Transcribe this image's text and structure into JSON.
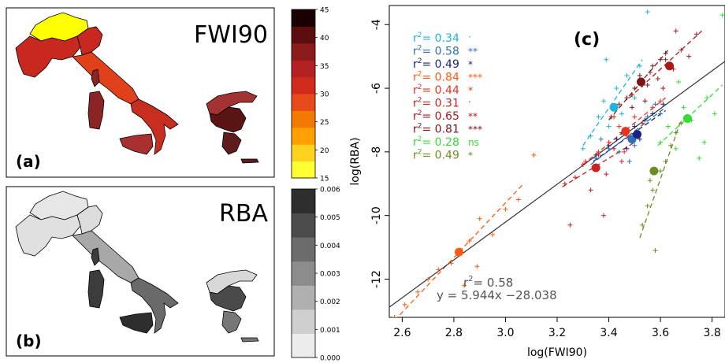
{
  "panel_a": {
    "map_title": "FWI90",
    "panel_label": "(a)",
    "colorbar_ticks": [
      "15",
      "20",
      "25",
      "30",
      "35",
      "40",
      "45"
    ],
    "colorbar_colors": [
      "#ffff33",
      "#ffd21f",
      "#ff9f00",
      "#f27a00",
      "#e64a19",
      "#d02a1a",
      "#b22222",
      "#8b1a1a",
      "#5a0e0e",
      "#1a0000"
    ],
    "region_colors": {
      "north_alps": "#ffff00",
      "north_italy": "#c8281f",
      "north_east": "#c8281f",
      "central_italy": "#e0401a",
      "south_italy": "#c82d1f",
      "sardinia": "#8b2525",
      "sicily": "#a93030",
      "greece_north": "#a33333",
      "greece_mid": "#5a1414",
      "greece_south": "#5e1c1c"
    }
  },
  "panel_b": {
    "map_title": "RBA",
    "panel_label": "(b)",
    "colorbar_ticks": [
      "0.000",
      "0.001",
      "0.002",
      "0.003",
      "0.004",
      "0.005",
      "0.006"
    ],
    "colorbar_colors": [
      "#ececec",
      "#cfcfcf",
      "#b0b0b0",
      "#8c8c8c",
      "#6c6c6c",
      "#4c4c4c",
      "#2e2e2e"
    ],
    "region_colors": {
      "north_alps": "#e6e6e6",
      "north_italy": "#e0e0e0",
      "north_east": "#dcdcdc",
      "central_italy": "#a8a8a8",
      "south_italy": "#6a6a6a",
      "sardinia": "#3c3c3c",
      "sicily": "#2e2e2e",
      "greece_north": "#d8d8d8",
      "greece_mid": "#4a4a4a",
      "greece_south": "#777777"
    }
  },
  "chart_data": {
    "type": "scatter",
    "panel_label": "(c)",
    "xlabel": "log(FWI90)",
    "ylabel": "log(RBA)",
    "xlim": [
      2.55,
      3.85
    ],
    "ylim": [
      -13.2,
      -3.4
    ],
    "xticks": [
      2.6,
      2.8,
      3.0,
      3.2,
      3.4,
      3.6,
      3.8
    ],
    "yticks": [
      -12,
      -10,
      -8,
      -6,
      -4
    ],
    "xtick_labels": [
      "2.6",
      "2.8",
      "3.0",
      "3.2",
      "3.4",
      "3.6",
      "3.8"
    ],
    "ytick_labels": [
      "-12",
      "-10",
      "-8",
      "-6",
      "-4"
    ],
    "overall_fit": {
      "slope": 5.944,
      "intercept": -28.038,
      "r2_text": "r",
      "r2_value": "= 0.58",
      "equation": "y = 5.944x −28.038",
      "color": "#333333"
    },
    "series": [
      {
        "color": "#1fb4dc",
        "r2": "= 0.34",
        "sig": "·",
        "mean": [
          3.42,
          -6.6
        ],
        "fit": [
          [
            3.3,
            -7.8
          ],
          [
            3.53,
            -5.1
          ]
        ],
        "points": [
          [
            3.33,
            -7.5
          ],
          [
            3.36,
            -6.9
          ],
          [
            3.38,
            -6.4
          ],
          [
            3.4,
            -7.2
          ],
          [
            3.43,
            -6.0
          ],
          [
            3.45,
            -6.8
          ],
          [
            3.47,
            -5.6
          ],
          [
            3.5,
            -6.3
          ],
          [
            3.52,
            -5.3
          ],
          [
            3.55,
            -3.6
          ],
          [
            3.3,
            -7.9
          ],
          [
            3.39,
            -5.1
          ]
        ]
      },
      {
        "color": "#2e6fb8",
        "r2": "= 0.58",
        "sig": "**",
        "mean": [
          3.49,
          -7.6
        ],
        "fit": [
          [
            3.33,
            -8.4
          ],
          [
            3.62,
            -6.6
          ]
        ],
        "points": [
          [
            3.35,
            -8.2
          ],
          [
            3.4,
            -7.9
          ],
          [
            3.44,
            -8.0
          ],
          [
            3.46,
            -7.3
          ],
          [
            3.5,
            -7.8
          ],
          [
            3.53,
            -7.1
          ],
          [
            3.55,
            -6.9
          ],
          [
            3.58,
            -6.5
          ],
          [
            3.6,
            -6.8
          ],
          [
            3.37,
            -7.6
          ],
          [
            3.48,
            -8.3
          ]
        ]
      },
      {
        "color": "#1a237e",
        "r2": "= 0.49",
        "sig": "*",
        "mean": [
          3.51,
          -7.45
        ],
        "fit": [
          [
            3.34,
            -8.3
          ],
          [
            3.62,
            -6.7
          ]
        ],
        "points": [
          [
            3.35,
            -8.1
          ],
          [
            3.4,
            -7.8
          ],
          [
            3.43,
            -7.6
          ],
          [
            3.47,
            -7.9
          ],
          [
            3.5,
            -7.2
          ],
          [
            3.54,
            -7.0
          ],
          [
            3.57,
            -6.8
          ],
          [
            3.61,
            -6.5
          ],
          [
            3.45,
            -7.4
          ],
          [
            3.52,
            -7.6
          ]
        ]
      },
      {
        "color": "#ff5a14",
        "r2": "= 0.84",
        "sig": "***",
        "mean": [
          2.82,
          -11.15
        ],
        "fit": [
          [
            2.57,
            -13.3
          ],
          [
            3.07,
            -9.0
          ]
        ],
        "points": [
          [
            2.57,
            -13.2
          ],
          [
            2.61,
            -12.8
          ],
          [
            2.66,
            -12.4
          ],
          [
            2.7,
            -12.0
          ],
          [
            2.74,
            -11.7
          ],
          [
            2.79,
            -11.5
          ],
          [
            2.86,
            -10.8
          ],
          [
            2.9,
            -10.1
          ],
          [
            2.95,
            -10.6
          ],
          [
            3.0,
            -9.8
          ],
          [
            3.05,
            -9.5
          ],
          [
            3.11,
            -8.1
          ],
          [
            2.89,
            -11.6
          ],
          [
            2.84,
            -12.2
          ]
        ]
      },
      {
        "color": "#e8321e",
        "r2": "= 0.44",
        "sig": "*",
        "mean": [
          3.465,
          -7.35
        ],
        "fit": [
          [
            3.3,
            -8.4
          ],
          [
            3.62,
            -6.3
          ]
        ],
        "points": [
          [
            3.31,
            -8.3
          ],
          [
            3.36,
            -8.0
          ],
          [
            3.4,
            -7.7
          ],
          [
            3.44,
            -7.2
          ],
          [
            3.47,
            -7.5
          ],
          [
            3.5,
            -6.9
          ],
          [
            3.53,
            -7.1
          ],
          [
            3.57,
            -6.6
          ],
          [
            3.6,
            -6.4
          ],
          [
            3.42,
            -6.9
          ],
          [
            3.46,
            -8.0
          ]
        ]
      },
      {
        "color": "#cc1f1f",
        "r2": "= 0.31",
        "sig": "·",
        "mean": [
          3.35,
          -8.5
        ],
        "fit": [
          [
            3.22,
            -9.1
          ],
          [
            3.5,
            -7.7
          ]
        ],
        "points": [
          [
            3.23,
            -9.0
          ],
          [
            3.27,
            -8.8
          ],
          [
            3.3,
            -8.4
          ],
          [
            3.33,
            -9.2
          ],
          [
            3.36,
            -8.1
          ],
          [
            3.39,
            -8.7
          ],
          [
            3.42,
            -7.9
          ],
          [
            3.45,
            -8.3
          ],
          [
            3.48,
            -7.6
          ],
          [
            3.25,
            -10.3
          ],
          [
            3.38,
            -10.0
          ]
        ]
      },
      {
        "color": "#a81818",
        "r2": "= 0.65",
        "sig": "**",
        "mean": [
          3.635,
          -5.3
        ],
        "fit": [
          [
            3.48,
            -6.3
          ],
          [
            3.76,
            -4.2
          ]
        ],
        "points": [
          [
            3.49,
            -6.2
          ],
          [
            3.53,
            -5.9
          ],
          [
            3.56,
            -5.5
          ],
          [
            3.59,
            -5.7
          ],
          [
            3.62,
            -5.1
          ],
          [
            3.65,
            -5.4
          ],
          [
            3.68,
            -4.8
          ],
          [
            3.71,
            -5.0
          ],
          [
            3.74,
            -4.3
          ],
          [
            3.66,
            -4.2
          ],
          [
            3.61,
            -6.0
          ]
        ]
      },
      {
        "color": "#7a1515",
        "r2": "= 0.81",
        "sig": "***",
        "mean": [
          3.525,
          -5.8
        ],
        "fit": [
          [
            3.4,
            -7.0
          ],
          [
            3.63,
            -4.8
          ]
        ],
        "points": [
          [
            3.41,
            -6.9
          ],
          [
            3.44,
            -6.5
          ],
          [
            3.47,
            -6.3
          ],
          [
            3.5,
            -6.0
          ],
          [
            3.52,
            -5.6
          ],
          [
            3.55,
            -5.9
          ],
          [
            3.57,
            -5.3
          ],
          [
            3.6,
            -5.1
          ],
          [
            3.62,
            -4.9
          ],
          [
            3.49,
            -6.6
          ],
          [
            3.54,
            -6.4
          ]
        ]
      },
      {
        "color": "#33dd33",
        "r2": "= 0.28",
        "sig": "ns",
        "mean": [
          3.705,
          -6.95
        ],
        "fit": [
          [
            3.59,
            -7.8
          ],
          [
            3.84,
            -5.9
          ]
        ],
        "points": [
          [
            3.6,
            -7.7
          ],
          [
            3.63,
            -7.2
          ],
          [
            3.66,
            -7.9
          ],
          [
            3.69,
            -6.6
          ],
          [
            3.72,
            -7.0
          ],
          [
            3.75,
            -8.2
          ],
          [
            3.78,
            -6.3
          ],
          [
            3.81,
            -6.8
          ],
          [
            3.84,
            -3.7
          ],
          [
            3.77,
            -7.7
          ],
          [
            3.67,
            -5.8
          ]
        ]
      },
      {
        "color": "#6b8e23",
        "r2": "= 0.49",
        "sig": "*",
        "mean": [
          3.575,
          -8.6
        ],
        "fit": [
          [
            3.52,
            -10.7
          ],
          [
            3.68,
            -7.0
          ]
        ],
        "points": [
          [
            3.53,
            -10.3
          ],
          [
            3.55,
            -9.7
          ],
          [
            3.57,
            -9.2
          ],
          [
            3.58,
            -11.1
          ],
          [
            3.6,
            -8.6
          ],
          [
            3.62,
            -8.3
          ],
          [
            3.64,
            -7.8
          ],
          [
            3.66,
            -7.4
          ],
          [
            3.68,
            -7.1
          ],
          [
            3.56,
            -8.9
          ]
        ]
      }
    ]
  }
}
